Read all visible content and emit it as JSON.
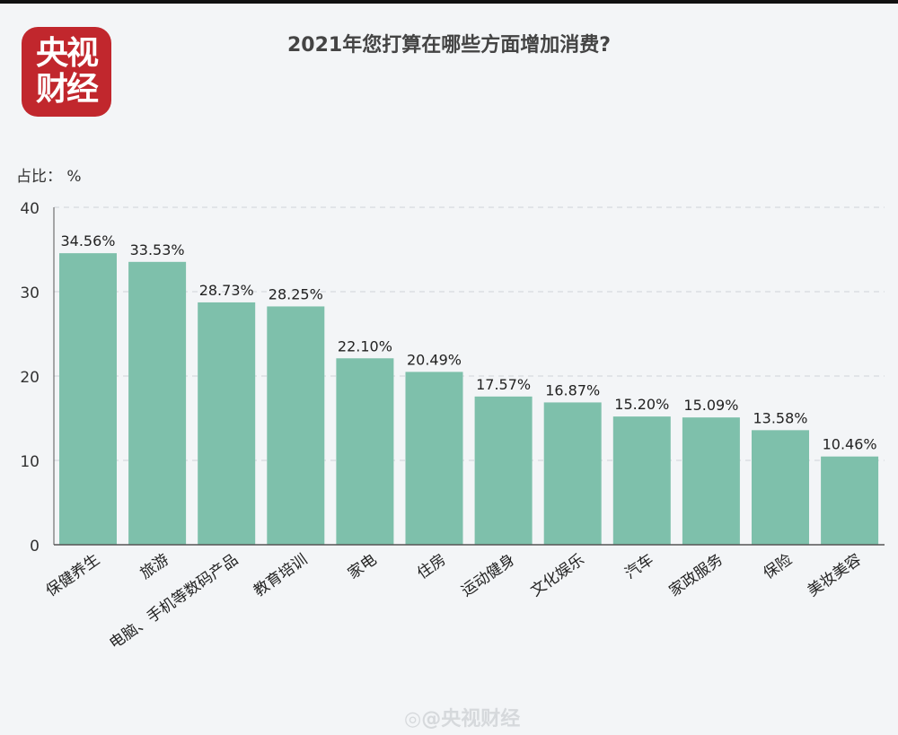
{
  "logo_text": [
    "央视",
    "财经"
  ],
  "watermark": "◎@央视财经",
  "colors": {
    "bar": "#7ec0ab",
    "logo": "#c1272d",
    "grid": "#cfd4d8"
  },
  "chart_data": {
    "type": "bar",
    "title": "2021年您打算在哪些方面增加消费?",
    "ylabel": "占比： %",
    "xlabel": "",
    "ylim": [
      0,
      40
    ],
    "yticks": [
      0,
      10,
      20,
      30,
      40
    ],
    "grid": "horizontal-dashed",
    "categories": [
      "保健养生",
      "旅游",
      "电脑、手机等数码产品",
      "教育培训",
      "家电",
      "住房",
      "运动健身",
      "文化娱乐",
      "汽车",
      "家政服务",
      "保险",
      "美妆美容"
    ],
    "values": [
      34.56,
      33.53,
      28.73,
      28.25,
      22.1,
      20.49,
      17.57,
      16.87,
      15.2,
      15.09,
      13.58,
      10.46
    ],
    "data_labels": [
      "34.56%",
      "33.53%",
      "28.73%",
      "28.25%",
      "22.10%",
      "20.49%",
      "17.57%",
      "16.87%",
      "15.20%",
      "15.09%",
      "13.58%",
      "10.46%"
    ]
  }
}
